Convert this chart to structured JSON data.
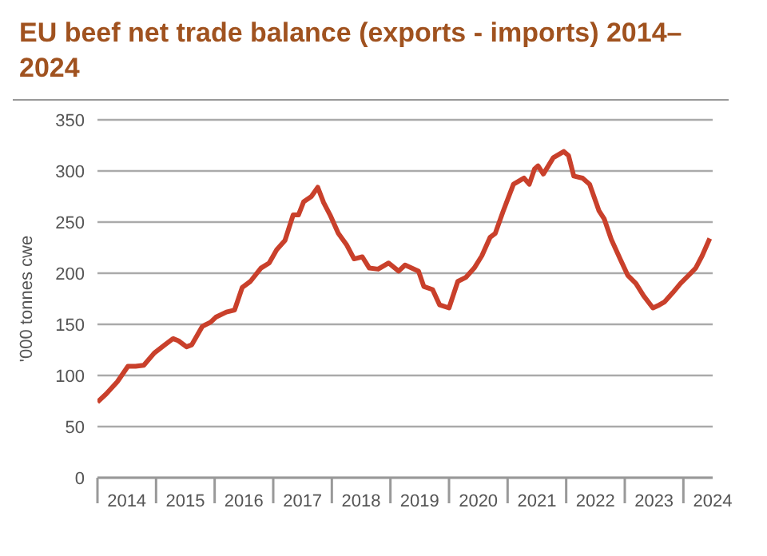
{
  "chart_data": {
    "type": "line",
    "title": "EU beef net trade balance (exports - imports) 2014–2024",
    "ylabel": "'000 tonnes cwe",
    "x": [
      2014.0,
      2014.15,
      2014.34,
      2014.52,
      2014.65,
      2014.79,
      2014.97,
      2015.15,
      2015.29,
      2015.38,
      2015.52,
      2015.61,
      2015.79,
      2015.93,
      2016.02,
      2016.2,
      2016.34,
      2016.47,
      2016.61,
      2016.79,
      2016.93,
      2017.06,
      2017.2,
      2017.34,
      2017.43,
      2017.52,
      2017.65,
      2017.76,
      2017.86,
      2017.97,
      2018.11,
      2018.25,
      2018.38,
      2018.52,
      2018.64,
      2018.79,
      2018.97,
      2019.14,
      2019.25,
      2019.48,
      2019.57,
      2019.72,
      2019.84,
      2020.0,
      2020.15,
      2020.29,
      2020.43,
      2020.56,
      2020.7,
      2020.79,
      2020.92,
      2021.1,
      2021.28,
      2021.37,
      2021.46,
      2021.52,
      2021.61,
      2021.78,
      2021.96,
      2022.04,
      2022.13,
      2022.28,
      2022.4,
      2022.56,
      2022.65,
      2022.77,
      2022.92,
      2023.05,
      2023.19,
      2023.32,
      2023.48,
      2023.59,
      2023.68,
      2023.82,
      2023.95,
      2024.09,
      2024.21,
      2024.32,
      2024.45
    ],
    "series": [
      {
        "color": "#c9402b",
        "values": [
          74,
          82,
          94,
          109,
          109,
          110,
          122,
          130,
          136,
          134,
          128,
          130,
          148,
          152,
          157,
          162,
          164,
          186,
          192,
          205,
          210,
          223,
          232,
          257,
          257,
          270,
          275,
          284,
          269,
          257,
          239,
          228,
          214,
          216,
          205,
          204,
          210,
          202,
          208,
          202,
          187,
          184,
          169,
          166,
          192,
          196,
          205,
          217,
          235,
          239,
          260,
          287,
          293,
          287,
          302,
          305,
          297,
          313,
          319,
          315,
          295,
          293,
          287,
          261,
          253,
          233,
          214,
          198,
          190,
          178,
          166,
          169,
          172,
          181,
          190,
          198,
          205,
          217,
          234
        ]
      }
    ],
    "xlim": [
      2014,
      2024.5
    ],
    "xticks": [
      {
        "value": 2014,
        "label": null
      },
      {
        "value": 2014.5,
        "label": "2014"
      },
      {
        "value": 2015,
        "label": null
      },
      {
        "value": 2015.5,
        "label": "2015"
      },
      {
        "value": 2016,
        "label": null
      },
      {
        "value": 2016.5,
        "label": "2016"
      },
      {
        "value": 2017,
        "label": null
      },
      {
        "value": 2017.5,
        "label": "2017"
      },
      {
        "value": 2018,
        "label": null
      },
      {
        "value": 2018.5,
        "label": "2018"
      },
      {
        "value": 2019,
        "label": null
      },
      {
        "value": 2019.5,
        "label": "2019"
      },
      {
        "value": 2020,
        "label": null
      },
      {
        "value": 2020.5,
        "label": "2020"
      },
      {
        "value": 2021,
        "label": null
      },
      {
        "value": 2021.5,
        "label": "2021"
      },
      {
        "value": 2022,
        "label": null
      },
      {
        "value": 2022.5,
        "label": "2022"
      },
      {
        "value": 2023,
        "label": null
      },
      {
        "value": 2023.5,
        "label": "2023"
      },
      {
        "value": 2024,
        "label": null
      },
      {
        "value": 2024.5,
        "label": "2024"
      }
    ],
    "ylim": [
      0,
      350
    ],
    "yticks": [
      0,
      50,
      100,
      150,
      200,
      250,
      300,
      350
    ],
    "grid": "y"
  }
}
